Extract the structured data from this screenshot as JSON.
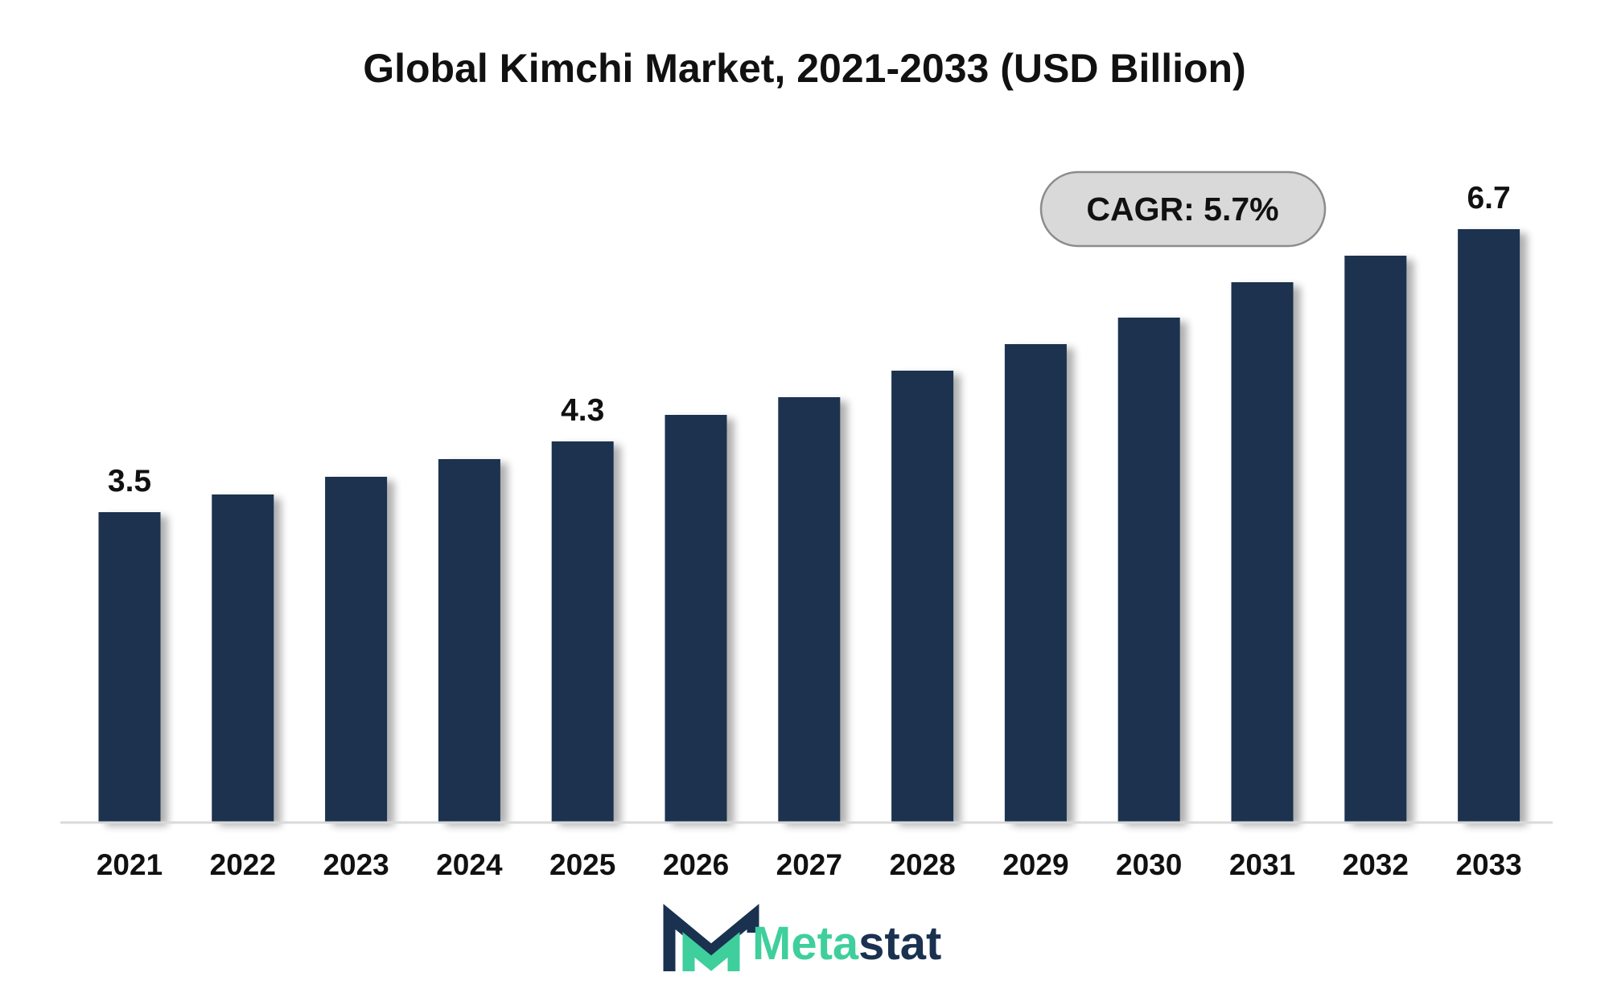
{
  "chart_data": {
    "type": "bar",
    "title": "Global Kimchi Market, 2021-2033 (USD Billion)",
    "xlabel": "",
    "ylabel": "",
    "categories": [
      "2021",
      "2022",
      "2023",
      "2024",
      "2025",
      "2026",
      "2027",
      "2028",
      "2029",
      "2030",
      "2031",
      "2032",
      "2033"
    ],
    "values": [
      3.5,
      3.7,
      3.9,
      4.1,
      4.3,
      4.6,
      4.8,
      5.1,
      5.4,
      5.7,
      6.1,
      6.4,
      6.7
    ],
    "data_labels": [
      {
        "category": "2021",
        "text": "3.5"
      },
      {
        "category": "2025",
        "text": "4.3"
      },
      {
        "category": "2033",
        "text": "6.7"
      }
    ],
    "ylim": [
      0,
      7.5
    ],
    "grid": false,
    "legend": "none",
    "bar_color": "#1a3150",
    "annotation": "CAGR: 5.7%"
  },
  "branding": {
    "logo_prefix": "Meta",
    "logo_suffix": "stat",
    "logo_icon": "metastat-m-icon",
    "accent_color": "#3ecf9c",
    "brand_dark": "#1a3150"
  }
}
